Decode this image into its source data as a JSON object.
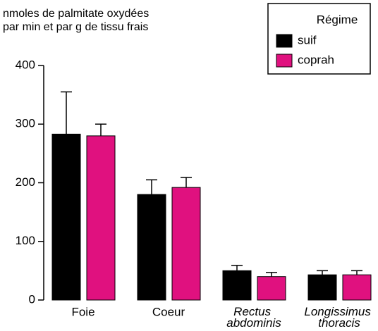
{
  "chart_data": {
    "type": "bar",
    "title_lines": [
      "nmoles de palmitate oxydées",
      "par min et par g de tissu frais"
    ],
    "legend_title": "Régime",
    "categories": [
      "Foie",
      "Coeur",
      "Rectus abdominis",
      "Longissimus thoracis"
    ],
    "category_italic": [
      false,
      false,
      true,
      true
    ],
    "series": [
      {
        "name": "suif",
        "color": "#000000",
        "values": [
          283,
          180,
          50,
          43
        ],
        "errors": [
          72,
          25,
          9,
          7
        ]
      },
      {
        "name": "coprah",
        "color": "#e0117f",
        "values": [
          280,
          192,
          40,
          43
        ],
        "errors": [
          20,
          17,
          7,
          7
        ]
      }
    ],
    "ylim": [
      0,
      400
    ],
    "yticks": [
      0,
      100,
      200,
      300,
      400
    ],
    "legend": "upper right"
  }
}
